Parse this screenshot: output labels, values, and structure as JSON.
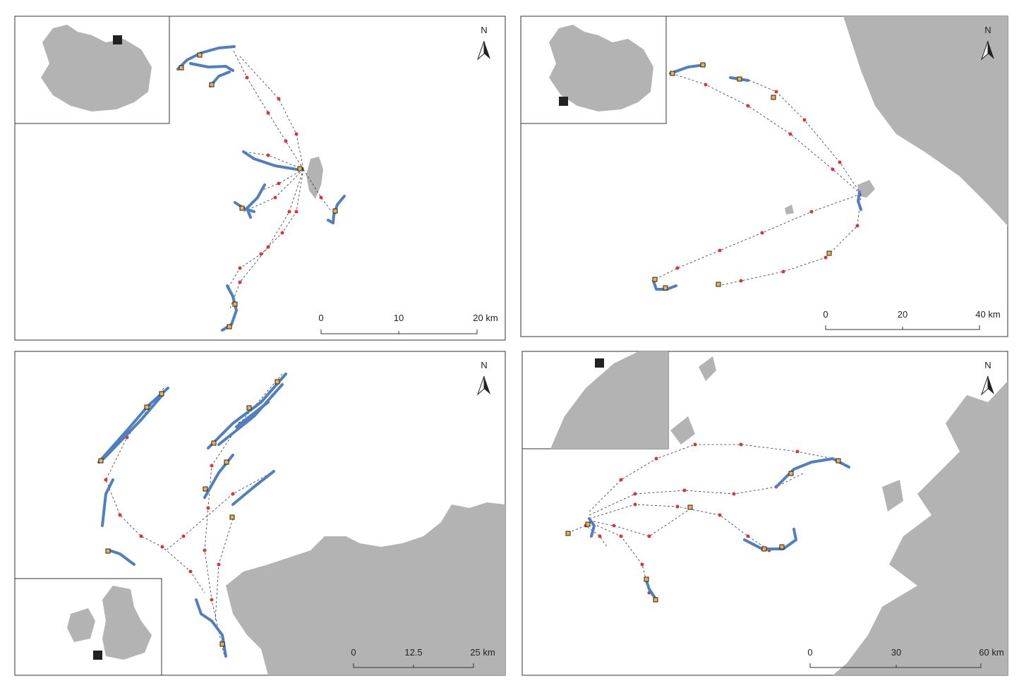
{
  "panels": [
    {
      "north": "N",
      "scale": [
        "0",
        "10",
        "20 km"
      ]
    },
    {
      "north": "N",
      "scale": [
        "0",
        "20",
        "40 km"
      ]
    },
    {
      "north": "N",
      "scale": [
        "0",
        "12.5",
        "25 km"
      ]
    },
    {
      "north": "N",
      "scale": [
        "0",
        "30",
        "60 km"
      ]
    }
  ]
}
